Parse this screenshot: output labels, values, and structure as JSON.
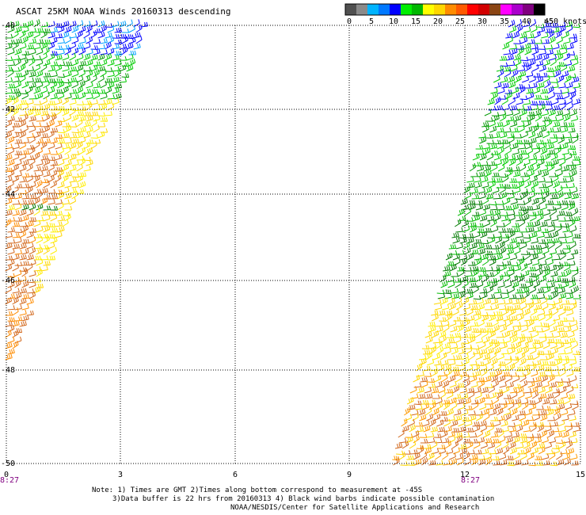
{
  "title": "ASCAT 25KM NOAA Winds 20160313 descending",
  "color_scale": {
    "units": ">50 knots",
    "ticks": [
      "0",
      "5",
      "10",
      "15",
      "20",
      "25",
      "30",
      "35",
      "40",
      "45"
    ],
    "colors": [
      "#505050",
      "#8a8a8a",
      "#00b4ff",
      "#0078ff",
      "#0000ff",
      "#00ee00",
      "#00b800",
      "#ffff00",
      "#ffd700",
      "#ff8c00",
      "#ff5a00",
      "#ff0000",
      "#d20000",
      "#8b4513",
      "#ff00ff",
      "#aa00cc",
      "#800080",
      "#000000"
    ]
  },
  "map": {
    "lat_labels": [
      "-40",
      "-42",
      "-44",
      "-46",
      "-48",
      "-50"
    ],
    "lon_labels": [
      "0",
      "3",
      "6",
      "9",
      "12",
      "15"
    ],
    "time_labels": [
      "8:27",
      "8:27"
    ]
  },
  "notes": {
    "line1": "Note: 1) Times are GMT 2)Times along bottom correspond to measurement at -45S",
    "line2": "3)Data buffer is 22 hrs from 20160313 4) Black wind barbs indicate possible contamination",
    "line3": "NOAA/NESDIS/Center for Satellite Applications and Research"
  }
}
